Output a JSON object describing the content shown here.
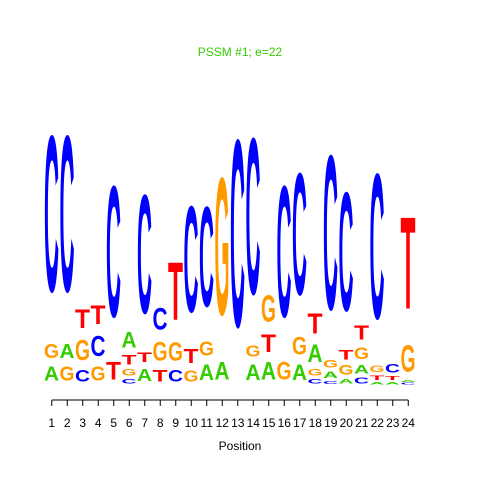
{
  "chart_data": {
    "type": "sequence-logo",
    "title": "PSSM #1; e=22",
    "xlabel": "Position",
    "ylabel": "",
    "title_color": "#33cc00",
    "letter_colors": {
      "A": "#33cc00",
      "C": "#0000ff",
      "G": "#ff9900",
      "T": "#ff0000"
    },
    "x_ticks": [
      "1",
      "2",
      "3",
      "4",
      "5",
      "6",
      "7",
      "8",
      "9",
      "10",
      "11",
      "12",
      "13",
      "14",
      "15",
      "16",
      "17",
      "18",
      "19",
      "20",
      "21",
      "22",
      "23",
      "24"
    ],
    "y_scale_max": 12.0,
    "positions": [
      {
        "position": 1,
        "stack": [
          {
            "letter": "A",
            "height": 0.9
          },
          {
            "letter": "G",
            "height": 0.9
          },
          {
            "letter": "C",
            "height": 10.0
          }
        ]
      },
      {
        "position": 2,
        "stack": [
          {
            "letter": "G",
            "height": 0.9
          },
          {
            "letter": "A",
            "height": 0.9
          },
          {
            "letter": "C",
            "height": 10.0
          }
        ]
      },
      {
        "position": 3,
        "stack": [
          {
            "letter": "C",
            "height": 0.75
          },
          {
            "letter": "G",
            "height": 1.3
          },
          {
            "letter": "T",
            "height": 1.2
          },
          {
            "letter": "C",
            "height": 0.0
          }
        ]
      },
      {
        "position": 4,
        "stack": [
          {
            "letter": "G",
            "height": 0.9
          },
          {
            "letter": "C",
            "height": 1.3
          },
          {
            "letter": "T",
            "height": 1.2
          }
        ]
      },
      {
        "position": 5,
        "stack": [
          {
            "letter": "T",
            "height": 1.1
          },
          {
            "letter": "C",
            "height": 8.4
          }
        ]
      },
      {
        "position": 6,
        "stack": [
          {
            "letter": "C",
            "height": 0.3
          },
          {
            "letter": "G",
            "height": 0.4
          },
          {
            "letter": "T",
            "height": 0.6
          },
          {
            "letter": "A",
            "height": 1.0
          }
        ]
      },
      {
        "position": 7,
        "stack": [
          {
            "letter": "A",
            "height": 0.8
          },
          {
            "letter": "T",
            "height": 0.6
          },
          {
            "letter": "C",
            "height": 7.6
          }
        ]
      },
      {
        "position": 8,
        "stack": [
          {
            "letter": "T",
            "height": 0.75
          },
          {
            "letter": "G",
            "height": 1.2
          },
          {
            "letter": "C",
            "height": 1.4
          }
        ]
      },
      {
        "position": 9,
        "stack": [
          {
            "letter": "C",
            "height": 0.75
          },
          {
            "letter": "G",
            "height": 1.15
          },
          {
            "letter": "T",
            "height": 3.7
          }
        ]
      },
      {
        "position": 10,
        "stack": [
          {
            "letter": "G",
            "height": 0.7
          },
          {
            "letter": "T",
            "height": 0.9
          },
          {
            "letter": "C",
            "height": 6.8
          }
        ]
      },
      {
        "position": 11,
        "stack": [
          {
            "letter": "A",
            "height": 1.0
          },
          {
            "letter": "G",
            "height": 0.9
          },
          {
            "letter": "C",
            "height": 6.4
          }
        ]
      },
      {
        "position": 12,
        "stack": [
          {
            "letter": "A",
            "height": 1.1
          },
          {
            "letter": "G",
            "height": 8.8
          }
        ]
      },
      {
        "position": 13,
        "stack": [
          {
            "letter": "C",
            "height": 12.0
          }
        ]
      },
      {
        "position": 14,
        "stack": [
          {
            "letter": "A",
            "height": 1.0
          },
          {
            "letter": "G",
            "height": 0.7
          },
          {
            "letter": "C",
            "height": 10.0
          }
        ]
      },
      {
        "position": 15,
        "stack": [
          {
            "letter": "A",
            "height": 1.1
          },
          {
            "letter": "T",
            "height": 1.1
          },
          {
            "letter": "G",
            "height": 1.7
          }
        ]
      },
      {
        "position": 16,
        "stack": [
          {
            "letter": "G",
            "height": 1.1
          },
          {
            "letter": "C",
            "height": 8.4
          }
        ]
      },
      {
        "position": 17,
        "stack": [
          {
            "letter": "A",
            "height": 1.0
          },
          {
            "letter": "G",
            "height": 1.1
          },
          {
            "letter": "C",
            "height": 7.8
          }
        ]
      },
      {
        "position": 18,
        "stack": [
          {
            "letter": "C",
            "height": 0.3
          },
          {
            "letter": "G",
            "height": 0.4
          },
          {
            "letter": "A",
            "height": 1.1
          },
          {
            "letter": "T",
            "height": 1.3
          }
        ]
      },
      {
        "position": 19,
        "stack": [
          {
            "letter": "C",
            "height": 0.2
          },
          {
            "letter": "A",
            "height": 0.4
          },
          {
            "letter": "G",
            "height": 0.5
          },
          {
            "letter": "C",
            "height": 9.9
          }
        ]
      },
      {
        "position": 20,
        "stack": [
          {
            "letter": "A",
            "height": 0.3
          },
          {
            "letter": "G",
            "height": 0.6
          },
          {
            "letter": "T",
            "height": 0.6
          },
          {
            "letter": "C",
            "height": 7.6
          }
        ]
      },
      {
        "position": 21,
        "stack": [
          {
            "letter": "C",
            "height": 0.35
          },
          {
            "letter": "A",
            "height": 0.55
          },
          {
            "letter": "G",
            "height": 0.75
          },
          {
            "letter": "T",
            "height": 0.9
          }
        ]
      },
      {
        "position": 22,
        "stack": [
          {
            "letter": "A",
            "height": 0.15
          },
          {
            "letter": "T",
            "height": 0.3
          },
          {
            "letter": "G",
            "height": 0.4
          },
          {
            "letter": "C",
            "height": 9.3
          }
        ]
      },
      {
        "position": 23,
        "stack": [
          {
            "letter": "A",
            "height": 0.15
          },
          {
            "letter": "T",
            "height": 0.25
          },
          {
            "letter": "C",
            "height": 0.55
          }
        ]
      },
      {
        "position": 24,
        "stack": [
          {
            "letter": "C",
            "height": 0.1
          },
          {
            "letter": "A",
            "height": 0.1
          },
          {
            "letter": "G",
            "height": 1.7
          },
          {
            "letter": "T",
            "height": 5.9
          }
        ]
      }
    ]
  }
}
